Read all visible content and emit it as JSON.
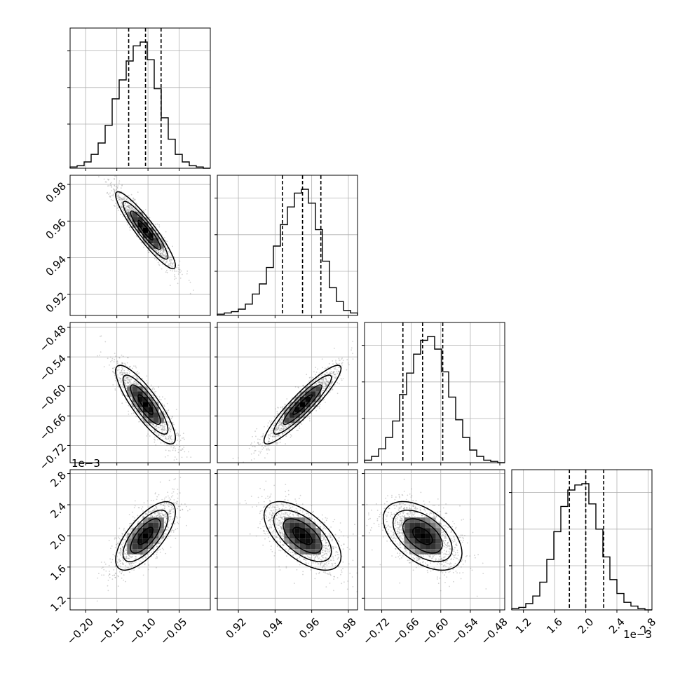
{
  "chart_data": {
    "type": "corner",
    "grid": true,
    "n_params": 4,
    "axes": [
      {
        "range": [
          -0.225,
          0.0
        ],
        "ticks": [
          -0.2,
          -0.15,
          -0.1,
          -0.05
        ],
        "tick_labels": [
          "−0.20",
          "−0.15",
          "−0.10",
          "−0.05"
        ],
        "offset_label": "",
        "quantiles": [
          -0.131,
          -0.104,
          -0.079
        ]
      },
      {
        "range": [
          0.9085,
          0.985
        ],
        "ticks": [
          0.92,
          0.94,
          0.96,
          0.98
        ],
        "tick_labels": [
          "0.92",
          "0.94",
          "0.96",
          "0.98"
        ],
        "offset_label": "",
        "quantiles": [
          0.944,
          0.955,
          0.965
        ]
      },
      {
        "range": [
          -0.755,
          -0.47
        ],
        "ticks": [
          -0.72,
          -0.66,
          -0.6,
          -0.54,
          -0.48
        ],
        "tick_labels": [
          "−0.72",
          "−0.66",
          "−0.60",
          "−0.54",
          "−0.48"
        ],
        "offset_label": "",
        "quantiles": [
          -0.677,
          -0.637,
          -0.596
        ]
      },
      {
        "range": [
          1.05,
          2.85
        ],
        "ticks": [
          1.2,
          1.6,
          2.0,
          2.4,
          2.8
        ],
        "tick_labels": [
          "1.2",
          "1.6",
          "2.0",
          "2.4",
          "2.8"
        ],
        "offset_label": "1e−3",
        "quantiles": [
          1.79,
          2.0,
          2.23
        ]
      }
    ],
    "histograms": [
      {
        "param": 0,
        "bin_counts": [
          1,
          2,
          5,
          11,
          20,
          34,
          55,
          70,
          85,
          97,
          100,
          86,
          63,
          40,
          23,
          11,
          5,
          2,
          1,
          0
        ]
      },
      {
        "param": 1,
        "bin_counts": [
          1,
          2,
          3,
          5,
          9,
          17,
          25,
          38,
          55,
          72,
          86,
          97,
          100,
          89,
          68,
          43,
          22,
          11,
          4,
          2
        ]
      },
      {
        "param": 2,
        "bin_counts": [
          2,
          5,
          11,
          20,
          33,
          54,
          71,
          86,
          97,
          100,
          90,
          72,
          52,
          34,
          20,
          10,
          5,
          2,
          1,
          0
        ]
      },
      {
        "param": 3,
        "bin_counts": [
          1,
          2,
          5,
          11,
          22,
          40,
          62,
          82,
          95,
          99,
          100,
          84,
          64,
          42,
          24,
          13,
          6,
          3,
          1,
          0
        ]
      }
    ],
    "pairs": [
      {
        "x_param": 0,
        "y_param": 1,
        "center": [
          -0.104,
          0.955
        ],
        "sigma": [
          0.024,
          0.0105
        ],
        "rho": -0.92
      },
      {
        "x_param": 0,
        "y_param": 2,
        "center": [
          -0.104,
          -0.637
        ],
        "sigma": [
          0.024,
          0.04
        ],
        "rho": -0.85
      },
      {
        "x_param": 1,
        "y_param": 2,
        "center": [
          0.955,
          -0.637
        ],
        "sigma": [
          0.0105,
          0.04
        ],
        "rho": 0.92
      },
      {
        "x_param": 0,
        "y_param": 3,
        "center": [
          -0.104,
          2.0
        ],
        "sigma": [
          0.024,
          0.22
        ],
        "rho": 0.7
      },
      {
        "x_param": 1,
        "y_param": 3,
        "center": [
          0.955,
          2.0
        ],
        "sigma": [
          0.0105,
          0.22
        ],
        "rho": -0.6
      },
      {
        "x_param": 2,
        "y_param": 3,
        "center": [
          -0.637,
          2.0
        ],
        "sigma": [
          0.04,
          0.22
        ],
        "rho": -0.5
      }
    ],
    "contour_levels_sigma": [
      0.5,
      1.0,
      1.5,
      2.0
    ],
    "colors": {
      "ink": "#000000",
      "grid": "#b0b0b0",
      "scatter": "#7f7f7f",
      "background": "#ffffff"
    }
  }
}
